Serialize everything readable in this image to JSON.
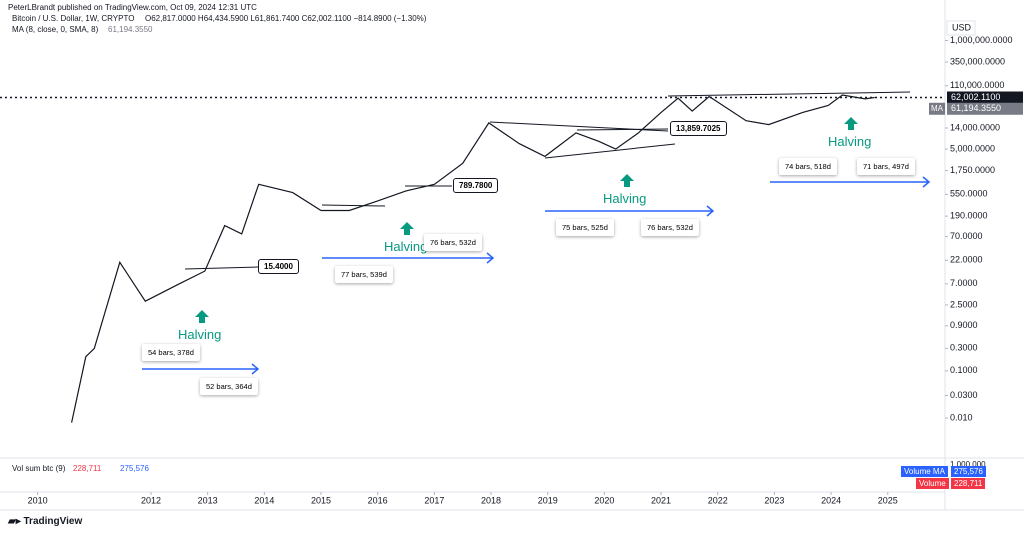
{
  "header": {
    "publisher": "PeterLBrandt published on TradingView.com, Oct 09, 2024 12:31 UTC",
    "symbol": "Bitcoin / U.S. Dollar, 1W, CRYPTO",
    "ohlc": "O62,817.0000  H64,434.5900  L61,861.7400  C62,002.1100  −814.8900 (−1.30%)",
    "ma": "MA (8, close, 0, SMA, 8)",
    "ma_value": "61,194.3550"
  },
  "chart_data": {
    "type": "line",
    "log_scale": true,
    "color": "#131722",
    "x": [
      2010.6,
      2010.85,
      2011.0,
      2011.45,
      2011.9,
      2012.5,
      2012.95,
      2013.3,
      2013.6,
      2013.9,
      2014.5,
      2015.0,
      2015.5,
      2016.0,
      2016.5,
      2017.0,
      2017.5,
      2017.96,
      2018.5,
      2018.95,
      2019.5,
      2019.9,
      2020.2,
      2020.6,
      2021.0,
      2021.3,
      2021.55,
      2021.85,
      2022.5,
      2022.9,
      2023.5,
      2023.95,
      2024.2,
      2024.6,
      2024.77
    ],
    "values": [
      0.008,
      0.2,
      0.3,
      20,
      3,
      7,
      13,
      120,
      80,
      900,
      600,
      250,
      250,
      400,
      650,
      900,
      2500,
      18000,
      6500,
      3500,
      11000,
      7300,
      5000,
      11000,
      30000,
      60000,
      32000,
      65000,
      20000,
      16500,
      30000,
      42000,
      70000,
      58000,
      62002.11
    ],
    "xlim": [
      2009.336,
      2026.01
    ],
    "xticks": [
      2010,
      2012,
      2013,
      2014,
      2015,
      2016,
      2017,
      2018,
      2019,
      2020,
      2021,
      2022,
      2023,
      2024,
      2025
    ],
    "ylim": [
      0.00165,
      2720000
    ],
    "yticks": [
      {
        "value": 1000000,
        "label": "1,000,000.0000"
      },
      {
        "value": 350000,
        "label": "350,000.0000"
      },
      {
        "value": 110000,
        "label": "110,000.0000"
      },
      {
        "value": 14000,
        "label": "14,000.0000"
      },
      {
        "value": 5000,
        "label": "5,000.0000"
      },
      {
        "value": 1750,
        "label": "1,750.0000"
      },
      {
        "value": 550,
        "label": "550.0000"
      },
      {
        "value": 190,
        "label": "190.0000"
      },
      {
        "value": 70,
        "label": "70.0000"
      },
      {
        "value": 22,
        "label": "22.0000"
      },
      {
        "value": 7,
        "label": "7.0000"
      },
      {
        "value": 2.5,
        "label": "2.5000"
      },
      {
        "value": 0.9,
        "label": "0.9000"
      },
      {
        "value": 0.3,
        "label": "0.3000"
      },
      {
        "value": 0.1,
        "label": "0.1000"
      },
      {
        "value": 0.03,
        "label": "0.0300"
      },
      {
        "value": 0.01,
        "label": "0.010"
      }
    ],
    "currency": "USD",
    "last_price": {
      "value": 62002.11,
      "label": "62,002.1100"
    },
    "ma_price": {
      "value": 61194.355,
      "label": "61,194.3550"
    },
    "ma_tag": "MA",
    "annotations": [
      "15.4000",
      "789.7800",
      "13,859.7025",
      "Halving",
      "Halving",
      "Halving",
      "Halving",
      "54 bars, 378d",
      "52 bars, 364d",
      "77 bars, 539d",
      "76 bars, 532d",
      "75 bars, 525d",
      "76 bars, 532d",
      "74 bars, 518d",
      "71 bars, 497d"
    ]
  },
  "volume": {
    "title": "Vol sum btc (9)",
    "value_a": "228,711",
    "value_b": "275,576",
    "scale": "1,000,000",
    "ma_tag": "Volume MA",
    "ma_value": "275,576",
    "vol_tag": "Volume",
    "vol_value": "228,711"
  },
  "footer": "TradingView"
}
